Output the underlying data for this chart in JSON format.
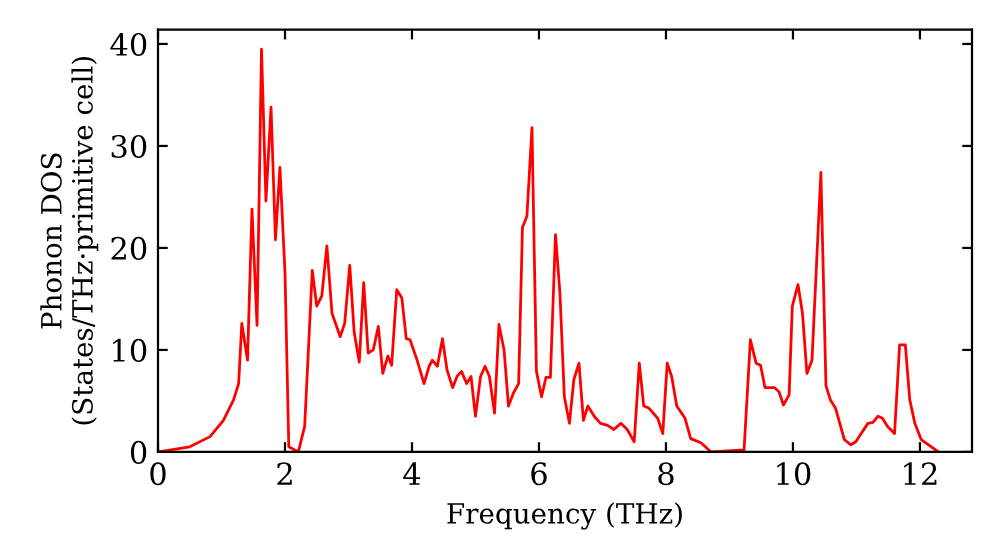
{
  "chart_data": {
    "type": "line",
    "xlabel": "Frequency (THz)",
    "ylabel": "Phonon DOS\n(States/THz·primitive cell)",
    "xlim": [
      0,
      12.82
    ],
    "ylim": [
      0,
      41.4
    ],
    "xticks": [
      0,
      2,
      4,
      6,
      8,
      10,
      12
    ],
    "yticks": [
      0,
      10,
      20,
      30,
      40
    ],
    "grid": false,
    "legend": false,
    "marker": "none",
    "line_style": "solid",
    "series": [
      {
        "color": "#ff0000",
        "x": [
          0,
          0.5,
          0.82,
          1.03,
          1.19,
          1.27,
          1.32,
          1.41,
          1.48,
          1.56,
          1.63,
          1.7,
          1.78,
          1.85,
          1.92,
          2.0,
          2.06,
          2.21,
          2.31,
          2.43,
          2.5,
          2.58,
          2.66,
          2.74,
          2.87,
          2.94,
          3.02,
          3.09,
          3.17,
          3.24,
          3.31,
          3.39,
          3.47,
          3.54,
          3.62,
          3.68,
          3.76,
          3.84,
          3.91,
          3.97,
          4.08,
          4.19,
          4.27,
          4.32,
          4.4,
          4.48,
          4.55,
          4.64,
          4.71,
          4.78,
          4.86,
          4.93,
          5.0,
          5.08,
          5.15,
          5.22,
          5.3,
          5.37,
          5.45,
          5.52,
          5.6,
          5.68,
          5.74,
          5.81,
          5.89,
          5.96,
          6.04,
          6.11,
          6.18,
          6.26,
          6.33,
          6.4,
          6.48,
          6.55,
          6.63,
          6.7,
          6.77,
          6.87,
          6.97,
          7.08,
          7.18,
          7.29,
          7.39,
          7.5,
          7.58,
          7.65,
          7.73,
          7.87,
          7.95,
          8.02,
          8.09,
          8.17,
          8.3,
          8.39,
          8.55,
          8.71,
          9.23,
          9.33,
          9.42,
          9.49,
          9.56,
          9.71,
          9.78,
          9.85,
          9.94,
          9.99,
          10.08,
          10.15,
          10.22,
          10.3,
          10.36,
          10.44,
          10.52,
          10.59,
          10.67,
          10.81,
          10.91,
          10.99,
          11.18,
          11.26,
          11.34,
          11.41,
          11.49,
          11.6,
          11.68,
          11.77,
          11.84,
          11.92,
          12.02,
          12.29
        ],
        "values": [
          0,
          0.5,
          1.5,
          3.1,
          5.1,
          6.7,
          12.6,
          9.0,
          23.8,
          12.4,
          39.5,
          24.6,
          33.8,
          20.8,
          27.9,
          17.6,
          0.5,
          0,
          2.5,
          17.8,
          14.3,
          15.3,
          20.2,
          13.6,
          11.3,
          12.6,
          18.3,
          11.7,
          8.8,
          16.6,
          9.7,
          10.0,
          12.3,
          7.7,
          9.4,
          8.5,
          15.9,
          15.1,
          11.1,
          11.0,
          9.0,
          6.7,
          8.4,
          9.0,
          8.4,
          11.1,
          8.1,
          6.3,
          7.4,
          7.9,
          6.7,
          7.4,
          3.5,
          7.4,
          8.4,
          7.4,
          3.8,
          12.5,
          10.0,
          4.5,
          5.8,
          6.7,
          22.0,
          23.1,
          31.8,
          7.9,
          5.4,
          7.3,
          7.3,
          21.3,
          15.6,
          5.4,
          2.8,
          7.1,
          8.7,
          3.1,
          4.5,
          3.5,
          2.8,
          2.6,
          2.2,
          2.8,
          2.2,
          1.0,
          8.7,
          4.5,
          4.3,
          3.3,
          1.8,
          8.7,
          7.4,
          4.5,
          3.3,
          1.3,
          0.9,
          0,
          0.2,
          11.0,
          8.7,
          8.5,
          6.3,
          6.3,
          5.9,
          4.6,
          5.6,
          14.3,
          16.4,
          13.6,
          7.7,
          9.0,
          16.9,
          27.4,
          6.5,
          5.1,
          4.3,
          1.2,
          0.7,
          1.0,
          2.8,
          2.9,
          3.5,
          3.3,
          2.5,
          1.8,
          10.5,
          10.5,
          5.1,
          2.8,
          1.2,
          0
        ]
      }
    ]
  }
}
